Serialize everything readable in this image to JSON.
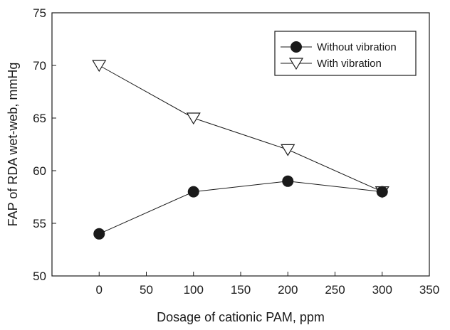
{
  "chart_data": {
    "type": "line",
    "title": "",
    "xlabel": "Dosage of cationic PAM, ppm",
    "ylabel": "FAP of RDA wet-web, mmHg",
    "xlim": [
      -50,
      350
    ],
    "ylim": [
      50,
      75
    ],
    "x_ticks": [
      0,
      50,
      100,
      150,
      200,
      250,
      300,
      350
    ],
    "y_ticks": [
      50,
      55,
      60,
      65,
      70,
      75
    ],
    "grid": false,
    "legend_position": "top-right",
    "series": [
      {
        "name": "Without vibration",
        "marker": "filled-circle",
        "color": "#1a1a1a",
        "x": [
          0,
          100,
          200,
          300
        ],
        "values": [
          54,
          58,
          59,
          58
        ]
      },
      {
        "name": "With vibration",
        "marker": "open-triangle-down",
        "color": "#1a1a1a",
        "x": [
          0,
          100,
          200,
          300
        ],
        "values": [
          70,
          65,
          62,
          58
        ]
      }
    ]
  }
}
